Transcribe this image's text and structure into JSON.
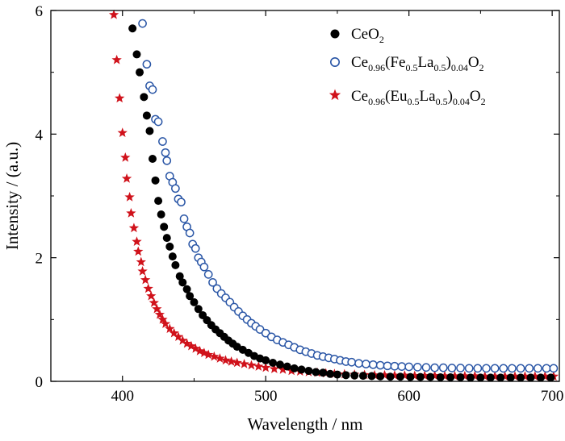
{
  "chart_data": {
    "type": "scatter",
    "xlabel": "Wavelength / nm",
    "ylabel": "Intensity / (a.u.)",
    "xlim": [
      350,
      705
    ],
    "ylim": [
      0,
      6
    ],
    "x_ticks": [
      "400",
      "500",
      "600",
      "700"
    ],
    "y_ticks": [
      "0",
      "2",
      "4",
      "6"
    ],
    "legend_position": "top-right",
    "grid": false,
    "series": [
      {
        "name": "CeO2",
        "legend": {
          "base": "CeO",
          "sub1": "2",
          "mid": "",
          "sub2": "",
          "tail": "",
          "sub3": "",
          "end": "",
          "sub4": ""
        },
        "marker": "filled-circle",
        "color": "#000000",
        "points": [
          [
            407,
            5.71
          ],
          [
            410,
            5.29
          ],
          [
            412,
            5.0
          ],
          [
            415,
            4.6
          ],
          [
            417,
            4.3
          ],
          [
            419,
            4.05
          ],
          [
            421,
            3.6
          ],
          [
            423,
            3.25
          ],
          [
            425,
            2.92
          ],
          [
            427,
            2.7
          ],
          [
            429,
            2.5
          ],
          [
            431,
            2.32
          ],
          [
            433,
            2.18
          ],
          [
            435,
            2.02
          ],
          [
            437,
            1.88
          ],
          [
            440,
            1.7
          ],
          [
            442,
            1.6
          ],
          [
            445,
            1.49
          ],
          [
            447,
            1.38
          ],
          [
            450,
            1.28
          ],
          [
            453,
            1.17
          ],
          [
            456,
            1.07
          ],
          [
            459,
            0.99
          ],
          [
            462,
            0.91
          ],
          [
            465,
            0.84
          ],
          [
            468,
            0.78
          ],
          [
            471,
            0.72
          ],
          [
            474,
            0.66
          ],
          [
            477,
            0.61
          ],
          [
            480,
            0.56
          ],
          [
            484,
            0.51
          ],
          [
            488,
            0.46
          ],
          [
            492,
            0.41
          ],
          [
            496,
            0.37
          ],
          [
            500,
            0.34
          ],
          [
            505,
            0.3
          ],
          [
            510,
            0.27
          ],
          [
            515,
            0.24
          ],
          [
            520,
            0.21
          ],
          [
            525,
            0.19
          ],
          [
            530,
            0.17
          ],
          [
            535,
            0.15
          ],
          [
            540,
            0.14
          ],
          [
            545,
            0.12
          ],
          [
            550,
            0.11
          ],
          [
            556,
            0.1
          ],
          [
            562,
            0.095
          ],
          [
            568,
            0.09
          ],
          [
            574,
            0.085
          ],
          [
            580,
            0.08
          ],
          [
            587,
            0.075
          ],
          [
            594,
            0.075
          ],
          [
            601,
            0.07
          ],
          [
            608,
            0.07
          ],
          [
            615,
            0.07
          ],
          [
            622,
            0.065
          ],
          [
            629,
            0.065
          ],
          [
            636,
            0.065
          ],
          [
            643,
            0.06
          ],
          [
            650,
            0.06
          ],
          [
            657,
            0.06
          ],
          [
            664,
            0.06
          ],
          [
            671,
            0.06
          ],
          [
            678,
            0.06
          ],
          [
            685,
            0.06
          ],
          [
            692,
            0.06
          ],
          [
            699,
            0.06
          ]
        ]
      },
      {
        "name": "Ce0.96(Fe0.5La0.5)0.04O2",
        "legend": {
          "base": "Ce",
          "sub1": "0.96",
          "mid": "(Fe",
          "sub2": "0.5",
          "tail": "La",
          "sub3": "0.5",
          "end": ")",
          "sub4": "0.04"
        },
        "legend_suffix": "O",
        "legend_suffix_sub": "2",
        "marker": "open-circle",
        "color": "#2a56a6",
        "points": [
          [
            414,
            5.79
          ],
          [
            417,
            5.13
          ],
          [
            419,
            4.78
          ],
          [
            421,
            4.72
          ],
          [
            423,
            4.24
          ],
          [
            425,
            4.2
          ],
          [
            428,
            3.88
          ],
          [
            430,
            3.7
          ],
          [
            431,
            3.57
          ],
          [
            433,
            3.32
          ],
          [
            435,
            3.22
          ],
          [
            437,
            3.12
          ],
          [
            439,
            2.95
          ],
          [
            441,
            2.9
          ],
          [
            443,
            2.63
          ],
          [
            445,
            2.5
          ],
          [
            447,
            2.4
          ],
          [
            449,
            2.22
          ],
          [
            451,
            2.15
          ],
          [
            453,
            2.0
          ],
          [
            455,
            1.93
          ],
          [
            457,
            1.85
          ],
          [
            460,
            1.73
          ],
          [
            463,
            1.6
          ],
          [
            466,
            1.5
          ],
          [
            469,
            1.42
          ],
          [
            472,
            1.35
          ],
          [
            475,
            1.28
          ],
          [
            478,
            1.2
          ],
          [
            481,
            1.13
          ],
          [
            484,
            1.06
          ],
          [
            487,
            1.0
          ],
          [
            490,
            0.94
          ],
          [
            493,
            0.89
          ],
          [
            496,
            0.84
          ],
          [
            500,
            0.78
          ],
          [
            504,
            0.72
          ],
          [
            508,
            0.67
          ],
          [
            512,
            0.63
          ],
          [
            516,
            0.59
          ],
          [
            520,
            0.55
          ],
          [
            524,
            0.51
          ],
          [
            528,
            0.48
          ],
          [
            532,
            0.45
          ],
          [
            536,
            0.42
          ],
          [
            540,
            0.4
          ],
          [
            544,
            0.38
          ],
          [
            548,
            0.36
          ],
          [
            552,
            0.34
          ],
          [
            556,
            0.32
          ],
          [
            560,
            0.31
          ],
          [
            565,
            0.29
          ],
          [
            570,
            0.28
          ],
          [
            575,
            0.27
          ],
          [
            580,
            0.26
          ],
          [
            585,
            0.25
          ],
          [
            590,
            0.245
          ],
          [
            595,
            0.24
          ],
          [
            600,
            0.235
          ],
          [
            606,
            0.23
          ],
          [
            612,
            0.225
          ],
          [
            618,
            0.22
          ],
          [
            624,
            0.22
          ],
          [
            630,
            0.215
          ],
          [
            636,
            0.215
          ],
          [
            642,
            0.21
          ],
          [
            648,
            0.21
          ],
          [
            654,
            0.21
          ],
          [
            660,
            0.21
          ],
          [
            666,
            0.21
          ],
          [
            672,
            0.21
          ],
          [
            678,
            0.21
          ],
          [
            684,
            0.21
          ],
          [
            690,
            0.21
          ],
          [
            696,
            0.21
          ],
          [
            701,
            0.21
          ]
        ]
      },
      {
        "name": "Ce0.96(Eu0.5La0.5)0.04O2",
        "legend": {
          "base": "Ce",
          "sub1": "0.96",
          "mid": "(Eu",
          "sub2": "0.5",
          "tail": "La",
          "sub3": "0.5",
          "end": ")",
          "sub4": "0.04"
        },
        "legend_suffix": "O",
        "legend_suffix_sub": "2",
        "marker": "star",
        "color": "#d0121b",
        "points": [
          [
            394,
            5.93
          ],
          [
            396,
            5.2
          ],
          [
            398,
            4.58
          ],
          [
            400,
            4.02
          ],
          [
            402,
            3.62
          ],
          [
            403,
            3.28
          ],
          [
            405,
            2.98
          ],
          [
            406,
            2.72
          ],
          [
            408,
            2.48
          ],
          [
            410,
            2.26
          ],
          [
            411,
            2.1
          ],
          [
            413,
            1.93
          ],
          [
            414,
            1.78
          ],
          [
            416,
            1.64
          ],
          [
            418,
            1.5
          ],
          [
            420,
            1.38
          ],
          [
            422,
            1.27
          ],
          [
            424,
            1.17
          ],
          [
            426,
            1.08
          ],
          [
            428,
            1.0
          ],
          [
            430,
            0.93
          ],
          [
            433,
            0.85
          ],
          [
            436,
            0.78
          ],
          [
            439,
            0.72
          ],
          [
            442,
            0.66
          ],
          [
            445,
            0.61
          ],
          [
            448,
            0.57
          ],
          [
            451,
            0.53
          ],
          [
            454,
            0.49
          ],
          [
            457,
            0.46
          ],
          [
            460,
            0.43
          ],
          [
            464,
            0.4
          ],
          [
            468,
            0.37
          ],
          [
            472,
            0.34
          ],
          [
            476,
            0.32
          ],
          [
            480,
            0.3
          ],
          [
            485,
            0.28
          ],
          [
            490,
            0.26
          ],
          [
            495,
            0.24
          ],
          [
            500,
            0.22
          ],
          [
            506,
            0.2
          ],
          [
            512,
            0.19
          ],
          [
            518,
            0.17
          ],
          [
            524,
            0.16
          ],
          [
            530,
            0.15
          ],
          [
            536,
            0.14
          ],
          [
            542,
            0.13
          ],
          [
            548,
            0.12
          ],
          [
            555,
            0.115
          ],
          [
            562,
            0.11
          ],
          [
            569,
            0.105
          ],
          [
            576,
            0.1
          ],
          [
            583,
            0.1
          ],
          [
            590,
            0.095
          ],
          [
            597,
            0.095
          ],
          [
            604,
            0.09
          ],
          [
            611,
            0.09
          ],
          [
            618,
            0.09
          ],
          [
            625,
            0.085
          ],
          [
            632,
            0.085
          ],
          [
            639,
            0.085
          ],
          [
            646,
            0.085
          ],
          [
            653,
            0.08
          ],
          [
            660,
            0.08
          ],
          [
            667,
            0.08
          ],
          [
            674,
            0.08
          ],
          [
            681,
            0.08
          ],
          [
            688,
            0.08
          ],
          [
            695,
            0.08
          ],
          [
            701,
            0.08
          ]
        ]
      }
    ]
  }
}
